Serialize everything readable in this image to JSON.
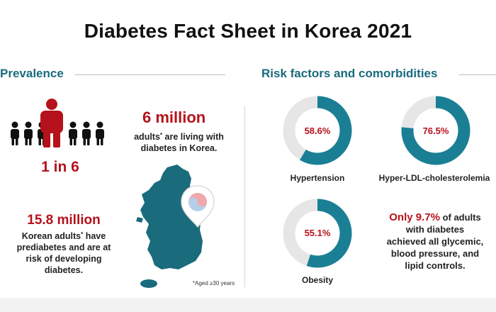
{
  "title": "Diabetes Fact Sheet in Korea 2021",
  "prevalence": {
    "heading": "Prevalence",
    "ratio": "1 in 6",
    "six_million": {
      "value": "6 million",
      "line1_pre": "adults",
      "line1_post": " are living with",
      "line2": "diabetes in Korea."
    },
    "prediabetes": {
      "value": "15.8 million",
      "line1_pre": "Korean adults",
      "line1_post": " have",
      "line2": "prediabetes and are at",
      "line3": "risk of developing",
      "line4": "diabetes."
    },
    "footnote": "*Aged ≥30 years",
    "asterisk": "*"
  },
  "risk": {
    "heading": "Risk factors and comorbidities",
    "donuts": [
      {
        "label": "Hypertension",
        "percent_text": "58.6%",
        "value": 58.6
      },
      {
        "label": "Hyper-LDL-cholesterolemia",
        "percent_text": "76.5%",
        "value": 76.5
      },
      {
        "label": "Obesity",
        "percent_text": "55.1%",
        "value": 55.1
      }
    ],
    "control": {
      "highlight": "Only 9.7%",
      "line1_post": " of adults",
      "line2": "with diabetes",
      "line3": "achieved all glycemic,",
      "line4": "blood pressure, and",
      "line5": "lipid controls."
    }
  },
  "colors": {
    "teal": "#1a6b7c",
    "donut_fill": "#1a7f94",
    "donut_track": "#e6e6e6",
    "red": "#b5121b",
    "person_black": "#111111"
  }
}
